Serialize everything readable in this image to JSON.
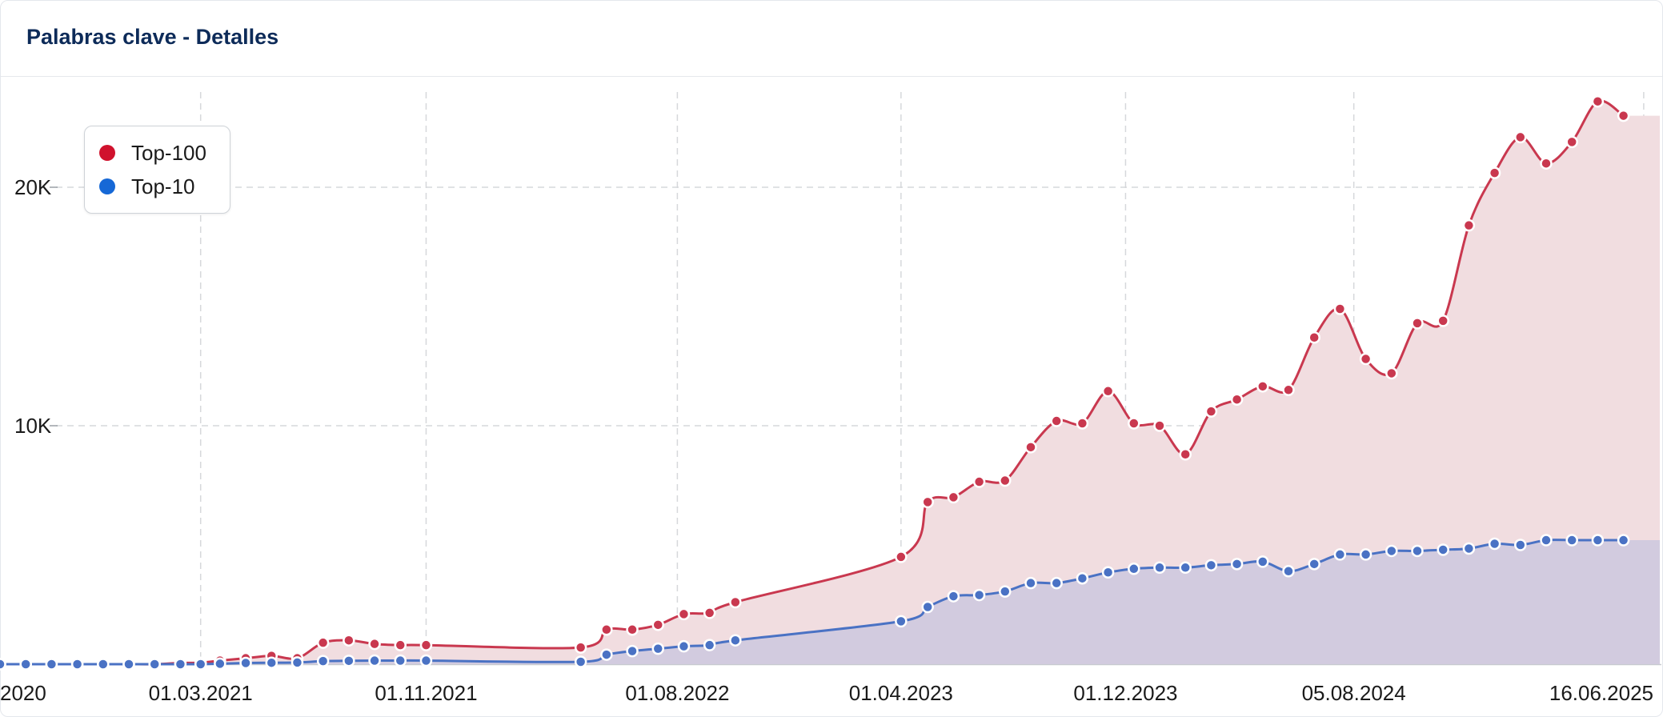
{
  "header": {
    "title": "Palabras clave - Detalles"
  },
  "legend": {
    "items": [
      {
        "label": "Top-100",
        "color": "#d0122d"
      },
      {
        "label": "Top-10",
        "color": "#1668d6"
      }
    ]
  },
  "chart_data": {
    "type": "area",
    "y_tick_labels": [
      "10K",
      "20K"
    ],
    "y_ticks": [
      10000,
      20000
    ],
    "ylim": [
      0,
      24000
    ],
    "xlim": [
      "2020-07-26",
      "2025-06-30"
    ],
    "x_tick_labels": [
      "2020",
      "01.03.2021",
      "01.11.2021",
      "01.08.2022",
      "01.04.2023",
      "01.12.2023",
      "05.08.2024",
      "16.06.2025"
    ],
    "x_ticks": [
      "2020-07-26",
      "2021-03-01",
      "2021-11-01",
      "2022-08-01",
      "2023-04-01",
      "2023-12-01",
      "2024-08-05",
      "2025-06-16"
    ],
    "grid": true,
    "legend_position": "top-left",
    "series": [
      {
        "name": "Top-100",
        "color": "#c9384f",
        "fill": "#f1dde0",
        "points": [
          [
            "2020-07-26",
            0
          ],
          [
            "2020-08-23",
            0
          ],
          [
            "2020-09-20",
            0
          ],
          [
            "2020-10-18",
            0
          ],
          [
            "2020-11-15",
            0
          ],
          [
            "2020-12-13",
            0
          ],
          [
            "2021-01-10",
            0
          ],
          [
            "2021-02-07",
            50
          ],
          [
            "2021-03-01",
            60
          ],
          [
            "2021-03-22",
            150
          ],
          [
            "2021-04-19",
            250
          ],
          [
            "2021-05-17",
            350
          ],
          [
            "2021-06-14",
            250
          ],
          [
            "2021-07-12",
            900
          ],
          [
            "2021-08-09",
            1000
          ],
          [
            "2021-09-06",
            850
          ],
          [
            "2021-10-04",
            800
          ],
          [
            "2021-11-01",
            800
          ],
          [
            "2022-04-18",
            700
          ],
          [
            "2022-05-16",
            1450
          ],
          [
            "2022-06-13",
            1450
          ],
          [
            "2022-07-11",
            1650
          ],
          [
            "2022-08-08",
            2100
          ],
          [
            "2022-09-05",
            2150
          ],
          [
            "2022-10-03",
            2600
          ],
          [
            "2023-04-01",
            4500
          ],
          [
            "2023-04-30",
            6800
          ],
          [
            "2023-05-28",
            7000
          ],
          [
            "2023-06-25",
            7650
          ],
          [
            "2023-07-23",
            7700
          ],
          [
            "2023-08-20",
            9100
          ],
          [
            "2023-09-17",
            10200
          ],
          [
            "2023-10-15",
            10100
          ],
          [
            "2023-11-12",
            11450
          ],
          [
            "2023-12-10",
            10100
          ],
          [
            "2024-01-07",
            10000
          ],
          [
            "2024-02-04",
            8800
          ],
          [
            "2024-03-03",
            10600
          ],
          [
            "2024-03-31",
            11100
          ],
          [
            "2024-04-28",
            11650
          ],
          [
            "2024-05-26",
            11500
          ],
          [
            "2024-06-23",
            13700
          ],
          [
            "2024-07-21",
            14900
          ],
          [
            "2024-08-18",
            12800
          ],
          [
            "2024-09-15",
            12200
          ],
          [
            "2024-10-13",
            14300
          ],
          [
            "2024-11-10",
            14400
          ],
          [
            "2024-12-08",
            18400
          ],
          [
            "2025-01-05",
            20600
          ],
          [
            "2025-02-02",
            22100
          ],
          [
            "2025-03-02",
            21000
          ],
          [
            "2025-03-30",
            21900
          ],
          [
            "2025-04-27",
            23600
          ],
          [
            "2025-05-25",
            23000
          ]
        ]
      },
      {
        "name": "Top-10",
        "color": "#4a72c4",
        "fill": "#cdc8de",
        "points": [
          [
            "2020-07-26",
            0
          ],
          [
            "2020-08-23",
            0
          ],
          [
            "2020-09-20",
            0
          ],
          [
            "2020-10-18",
            0
          ],
          [
            "2020-11-15",
            0
          ],
          [
            "2020-12-13",
            0
          ],
          [
            "2021-01-10",
            0
          ],
          [
            "2021-02-07",
            0
          ],
          [
            "2021-03-01",
            0
          ],
          [
            "2021-03-22",
            20
          ],
          [
            "2021-04-19",
            50
          ],
          [
            "2021-05-17",
            60
          ],
          [
            "2021-06-14",
            70
          ],
          [
            "2021-07-12",
            130
          ],
          [
            "2021-08-09",
            140
          ],
          [
            "2021-09-06",
            150
          ],
          [
            "2021-10-04",
            150
          ],
          [
            "2021-11-01",
            150
          ],
          [
            "2022-04-18",
            100
          ],
          [
            "2022-05-16",
            400
          ],
          [
            "2022-06-13",
            550
          ],
          [
            "2022-07-11",
            650
          ],
          [
            "2022-08-08",
            750
          ],
          [
            "2022-09-05",
            800
          ],
          [
            "2022-10-03",
            1000
          ],
          [
            "2023-04-01",
            1800
          ],
          [
            "2023-04-30",
            2400
          ],
          [
            "2023-05-28",
            2850
          ],
          [
            "2023-06-25",
            2900
          ],
          [
            "2023-07-23",
            3050
          ],
          [
            "2023-08-20",
            3400
          ],
          [
            "2023-09-17",
            3400
          ],
          [
            "2023-10-15",
            3600
          ],
          [
            "2023-11-12",
            3850
          ],
          [
            "2023-12-10",
            4000
          ],
          [
            "2024-01-07",
            4050
          ],
          [
            "2024-02-04",
            4050
          ],
          [
            "2024-03-03",
            4150
          ],
          [
            "2024-03-31",
            4200
          ],
          [
            "2024-04-28",
            4300
          ],
          [
            "2024-05-26",
            3900
          ],
          [
            "2024-06-23",
            4200
          ],
          [
            "2024-07-21",
            4600
          ],
          [
            "2024-08-18",
            4600
          ],
          [
            "2024-09-15",
            4750
          ],
          [
            "2024-10-13",
            4750
          ],
          [
            "2024-11-10",
            4800
          ],
          [
            "2024-12-08",
            4850
          ],
          [
            "2025-01-05",
            5050
          ],
          [
            "2025-02-02",
            5000
          ],
          [
            "2025-03-02",
            5200
          ],
          [
            "2025-03-30",
            5200
          ],
          [
            "2025-04-27",
            5200
          ],
          [
            "2025-05-25",
            5200
          ]
        ]
      }
    ]
  }
}
